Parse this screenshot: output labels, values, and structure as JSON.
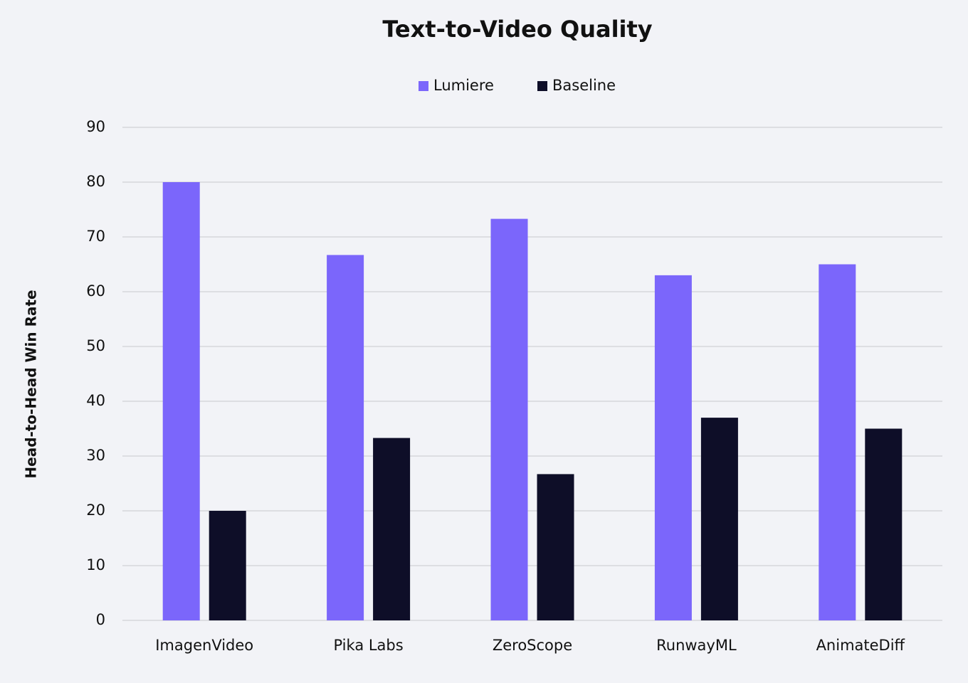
{
  "chart_data": {
    "type": "bar",
    "title": "Text-to-Video Quality",
    "y_label": "Head-to-Head Win Rate",
    "categories": [
      "ImagenVideo",
      "Pika Labs",
      "ZeroScope",
      "RunwayML",
      "AnimateDiff"
    ],
    "series": [
      {
        "name": "Lumiere",
        "color": "#7b66fb",
        "values": [
          80,
          66.7,
          73.3,
          63,
          65
        ]
      },
      {
        "name": "Baseline",
        "color": "#0e0e28",
        "values": [
          20,
          33.3,
          26.7,
          37,
          35
        ]
      }
    ],
    "ylim": [
      0,
      90
    ],
    "yticks": [
      0,
      10,
      20,
      30,
      40,
      50,
      60,
      70,
      80,
      90
    ],
    "grid": true,
    "legend": "top"
  }
}
